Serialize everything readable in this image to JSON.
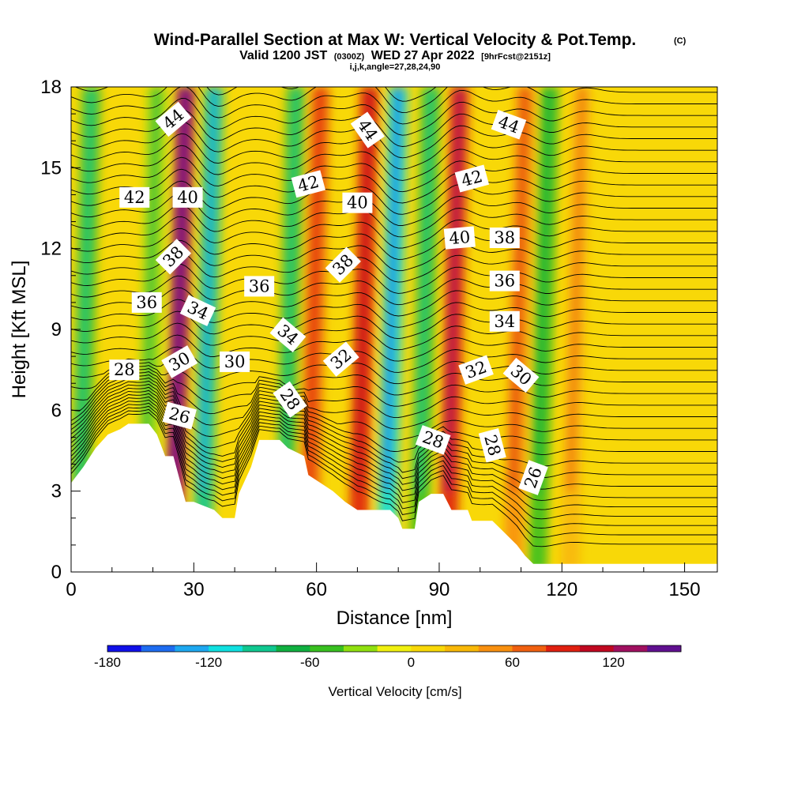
{
  "header": {
    "title_main": "Wind-Parallel Section at Max W: Vertical Velocity & Pot.Temp.",
    "title_units": "(C)",
    "subtitle_a": "Valid 1200 JST",
    "subtitle_b": "(0300Z)",
    "subtitle_c": "WED 27 Apr 2022",
    "subtitle_d": "[9hrFcst@2151z]",
    "subtitle_e": "i,j,k,angle=27,28,24,90"
  },
  "chart_data": {
    "type": "heatmap",
    "xlabel": "Distance [nm]",
    "ylabel": "Height [Kft MSL]",
    "xlim": [
      0,
      158
    ],
    "ylim": [
      0,
      18
    ],
    "xticks": [
      0,
      30,
      60,
      90,
      120,
      150
    ],
    "yticks": [
      0,
      3,
      6,
      9,
      12,
      15,
      18
    ],
    "colorbar": {
      "label": "Vertical Velocity [cm/s]",
      "ticks": [
        -180,
        -120,
        -60,
        0,
        60,
        120
      ],
      "bounds": [
        -180,
        -160,
        -140,
        -120,
        -100,
        -80,
        -60,
        -40,
        -20,
        0,
        20,
        40,
        60,
        80,
        100,
        120,
        140,
        160
      ],
      "colors": [
        "#1010e8",
        "#1e6cf0",
        "#1ea8f0",
        "#10e0e0",
        "#10c890",
        "#10b040",
        "#38c020",
        "#90e010",
        "#f0f010",
        "#f8d808",
        "#f8b808",
        "#f89010",
        "#f06010",
        "#e02010",
        "#c00820",
        "#a01060",
        "#601090"
      ]
    },
    "updraft_columns": [
      {
        "x": 2,
        "w": -60
      },
      {
        "x": 18,
        "w": -40
      },
      {
        "x": 25,
        "w": 130
      },
      {
        "x": 32,
        "w": -100
      },
      {
        "x": 52,
        "w": -60
      },
      {
        "x": 58,
        "w": 60
      },
      {
        "x": 70,
        "w": 80
      },
      {
        "x": 77,
        "w": -120
      },
      {
        "x": 85,
        "w": -60
      },
      {
        "x": 92,
        "w": 90
      },
      {
        "x": 108,
        "w": 50
      },
      {
        "x": 114,
        "w": -50
      },
      {
        "x": 122,
        "w": 30
      }
    ],
    "terrain": [
      {
        "x": 0,
        "z": 3.3
      },
      {
        "x": 3,
        "z": 3.9
      },
      {
        "x": 6,
        "z": 4.6
      },
      {
        "x": 9,
        "z": 5.1
      },
      {
        "x": 12,
        "z": 5.3
      },
      {
        "x": 14,
        "z": 5.5
      },
      {
        "x": 19,
        "z": 5.5
      },
      {
        "x": 21,
        "z": 5.1
      },
      {
        "x": 23,
        "z": 4.3
      },
      {
        "x": 25,
        "z": 4.3
      },
      {
        "x": 28,
        "z": 2.6
      },
      {
        "x": 30,
        "z": 2.6
      },
      {
        "x": 35,
        "z": 2.3
      },
      {
        "x": 37,
        "z": 2.0
      },
      {
        "x": 40,
        "z": 2.0
      },
      {
        "x": 41,
        "z": 2.9
      },
      {
        "x": 44,
        "z": 3.9
      },
      {
        "x": 46,
        "z": 4.9
      },
      {
        "x": 51,
        "z": 4.9
      },
      {
        "x": 53,
        "z": 4.6
      },
      {
        "x": 57,
        "z": 4.3
      },
      {
        "x": 58,
        "z": 3.6
      },
      {
        "x": 61,
        "z": 3.3
      },
      {
        "x": 64,
        "z": 3.0
      },
      {
        "x": 67,
        "z": 2.6
      },
      {
        "x": 70,
        "z": 2.3
      },
      {
        "x": 78,
        "z": 2.3
      },
      {
        "x": 80,
        "z": 2.0
      },
      {
        "x": 81,
        "z": 1.6
      },
      {
        "x": 84,
        "z": 1.6
      },
      {
        "x": 85,
        "z": 2.6
      },
      {
        "x": 88,
        "z": 2.9
      },
      {
        "x": 91,
        "z": 2.9
      },
      {
        "x": 93,
        "z": 2.3
      },
      {
        "x": 97,
        "z": 2.3
      },
      {
        "x": 98,
        "z": 1.9
      },
      {
        "x": 103,
        "z": 1.9
      },
      {
        "x": 105,
        "z": 1.6
      },
      {
        "x": 107,
        "z": 1.3
      },
      {
        "x": 109,
        "z": 1.0
      },
      {
        "x": 111,
        "z": 0.6
      },
      {
        "x": 113,
        "z": 0.3
      },
      {
        "x": 158,
        "z": 0.3
      }
    ],
    "theta_levels": [
      26,
      28,
      30,
      32,
      34,
      36,
      38,
      40,
      42,
      44
    ],
    "contour_labels": [
      {
        "text": "44",
        "x": 25,
        "y": 16.8,
        "rot": -40
      },
      {
        "text": "42",
        "x": 15.5,
        "y": 13.9,
        "rot": 0
      },
      {
        "text": "40",
        "x": 28.5,
        "y": 13.9,
        "rot": 0
      },
      {
        "text": "38",
        "x": 25,
        "y": 11.7,
        "rot": -45
      },
      {
        "text": "36",
        "x": 18.5,
        "y": 10.0,
        "rot": 0
      },
      {
        "text": "34",
        "x": 31,
        "y": 9.7,
        "rot": 25
      },
      {
        "text": "30",
        "x": 26.5,
        "y": 7.8,
        "rot": -30
      },
      {
        "text": "28",
        "x": 13,
        "y": 7.5,
        "rot": 0
      },
      {
        "text": "26",
        "x": 26.5,
        "y": 5.8,
        "rot": 15
      },
      {
        "text": "36",
        "x": 46,
        "y": 10.6,
        "rot": 0
      },
      {
        "text": "30",
        "x": 40,
        "y": 7.8,
        "rot": 0
      },
      {
        "text": "34",
        "x": 53,
        "y": 8.8,
        "rot": 40
      },
      {
        "text": "28",
        "x": 53.5,
        "y": 6.4,
        "rot": 55
      },
      {
        "text": "42",
        "x": 58,
        "y": 14.4,
        "rot": -15
      },
      {
        "text": "40",
        "x": 70,
        "y": 13.7,
        "rot": 0
      },
      {
        "text": "38",
        "x": 66.5,
        "y": 11.4,
        "rot": -45
      },
      {
        "text": "44",
        "x": 72.5,
        "y": 16.4,
        "rot": 55
      },
      {
        "text": "32",
        "x": 66,
        "y": 7.9,
        "rot": -40
      },
      {
        "text": "28",
        "x": 88.5,
        "y": 4.9,
        "rot": 20
      },
      {
        "text": "42",
        "x": 98,
        "y": 14.6,
        "rot": -15
      },
      {
        "text": "40",
        "x": 95,
        "y": 12.4,
        "rot": -5
      },
      {
        "text": "44",
        "x": 107,
        "y": 16.6,
        "rot": 20
      },
      {
        "text": "38",
        "x": 106,
        "y": 12.4,
        "rot": 0
      },
      {
        "text": "36",
        "x": 106,
        "y": 10.8,
        "rot": 0
      },
      {
        "text": "34",
        "x": 106,
        "y": 9.3,
        "rot": 0
      },
      {
        "text": "32",
        "x": 99,
        "y": 7.5,
        "rot": -20
      },
      {
        "text": "30",
        "x": 110,
        "y": 7.3,
        "rot": 40
      },
      {
        "text": "28",
        "x": 103,
        "y": 4.7,
        "rot": 75
      },
      {
        "text": "26",
        "x": 113,
        "y": 3.5,
        "rot": -70
      }
    ]
  }
}
